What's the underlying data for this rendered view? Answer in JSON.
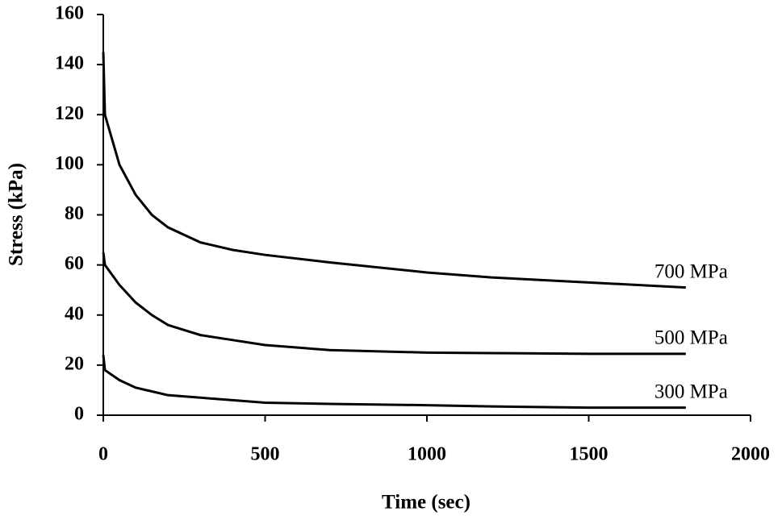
{
  "chart_data": {
    "type": "line",
    "x_label": "Time (sec)",
    "y_label": "Stress (kPa)",
    "xlim": [
      0,
      2000
    ],
    "xticks": [
      0,
      500,
      1000,
      1500,
      2000
    ],
    "ylim": [
      0,
      160
    ],
    "yticks": [
      0,
      20,
      40,
      60,
      80,
      100,
      120,
      140,
      160
    ],
    "x": [
      0,
      5,
      50,
      100,
      150,
      200,
      300,
      400,
      500,
      700,
      1000,
      1200,
      1500,
      1800
    ],
    "series": [
      {
        "name": "700 MPa",
        "color": "#000000",
        "values": [
          145,
          120,
          100,
          88,
          80,
          75,
          69,
          66,
          64,
          61,
          57,
          55,
          53,
          51
        ]
      },
      {
        "name": "500 MPa",
        "color": "#000000",
        "values": [
          65,
          60,
          52,
          45,
          40,
          36,
          32,
          30,
          28,
          26,
          25,
          24.8,
          24.5,
          24.5
        ]
      },
      {
        "name": "300 MPa",
        "color": "#000000",
        "values": [
          24,
          18,
          14,
          11,
          9.5,
          8,
          7,
          6,
          5,
          4.5,
          4,
          3.5,
          3,
          3
        ]
      }
    ]
  }
}
